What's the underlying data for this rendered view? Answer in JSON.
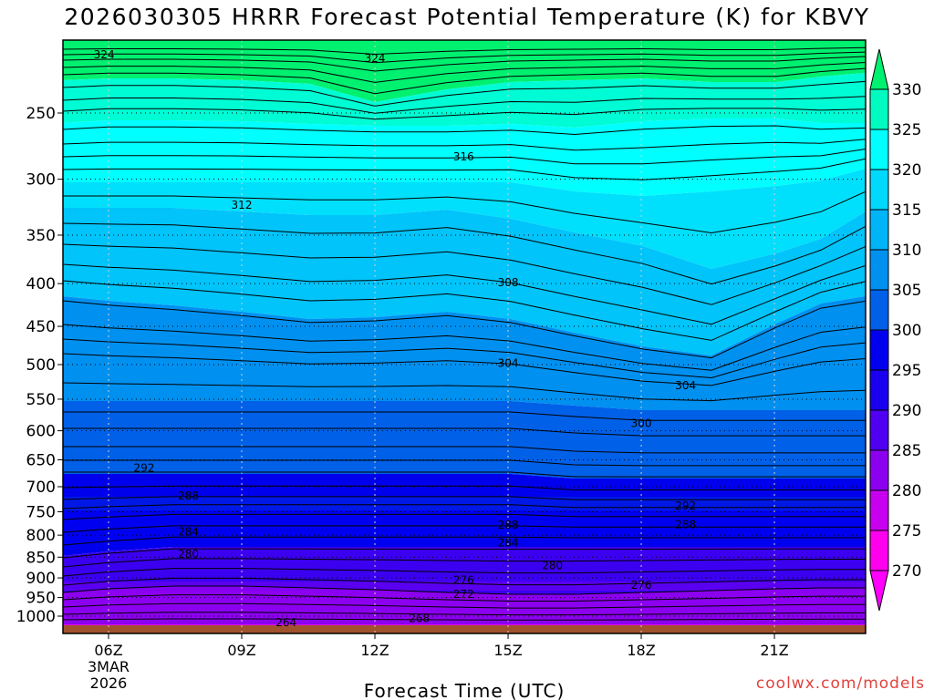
{
  "chart_data": {
    "type": "contour",
    "title": "2026030305 HRRR Forecast Potential Temperature (K) for KBVY",
    "xlabel": "Forecast Time (UTC)",
    "ylabel": "",
    "x_ticks": [
      "06Z",
      "09Z",
      "12Z",
      "15Z",
      "18Z",
      "21Z"
    ],
    "x_tick_hours": [
      6,
      9,
      12,
      15,
      18,
      21
    ],
    "x_range_hours": [
      5,
      23
    ],
    "date_label": [
      "3MAR",
      "2026"
    ],
    "y_scale": "log-pressure",
    "y_ticks": [
      250,
      300,
      350,
      400,
      450,
      500,
      550,
      600,
      650,
      700,
      750,
      800,
      850,
      900,
      950,
      1000
    ],
    "y_range_hpa": [
      200,
      1040
    ],
    "colorbar": {
      "labels": [
        "330",
        "325",
        "320",
        "315",
        "310",
        "305",
        "300",
        "295",
        "290",
        "285",
        "280",
        "275",
        "270"
      ],
      "colors": [
        "#00f070",
        "#00fbc0",
        "#00ffff",
        "#00d8fc",
        "#00b4f8",
        "#0090f0",
        "#0060e8",
        "#0000ee",
        "#1a00ef",
        "#5000f0",
        "#8c00f0",
        "#c800f0",
        "#ff00ee",
        "#ff00ff"
      ]
    },
    "contour_labels": [
      {
        "text": "324",
        "hour": 5.9,
        "hpa": 213
      },
      {
        "text": "324",
        "hour": 12.0,
        "hpa": 215
      },
      {
        "text": "316",
        "hour": 14.0,
        "hpa": 282
      },
      {
        "text": "312",
        "hour": 9.0,
        "hpa": 322
      },
      {
        "text": "308",
        "hour": 15.0,
        "hpa": 399
      },
      {
        "text": "304",
        "hour": 15.0,
        "hpa": 498
      },
      {
        "text": "304",
        "hour": 19.0,
        "hpa": 530
      },
      {
        "text": "300",
        "hour": 18.0,
        "hpa": 588
      },
      {
        "text": "292",
        "hour": 6.8,
        "hpa": 665
      },
      {
        "text": "292",
        "hour": 19.0,
        "hpa": 738
      },
      {
        "text": "288",
        "hour": 7.8,
        "hpa": 718
      },
      {
        "text": "288",
        "hour": 15.0,
        "hpa": 778
      },
      {
        "text": "288",
        "hour": 19.0,
        "hpa": 777
      },
      {
        "text": "284",
        "hour": 7.8,
        "hpa": 793
      },
      {
        "text": "284",
        "hour": 15.0,
        "hpa": 817
      },
      {
        "text": "280",
        "hour": 7.8,
        "hpa": 843
      },
      {
        "text": "280",
        "hour": 16.0,
        "hpa": 870
      },
      {
        "text": "276",
        "hour": 14.0,
        "hpa": 906
      },
      {
        "text": "276",
        "hour": 18.0,
        "hpa": 918
      },
      {
        "text": "272",
        "hour": 14.0,
        "hpa": 941
      },
      {
        "text": "268",
        "hour": 13.0,
        "hpa": 1006
      },
      {
        "text": "264",
        "hour": 10.0,
        "hpa": 1018
      }
    ]
  },
  "credit": "coolwx.com/models"
}
